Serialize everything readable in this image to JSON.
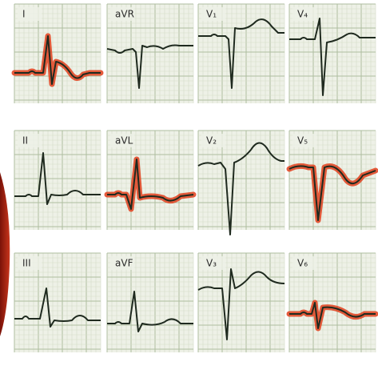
{
  "leads": [
    {
      "label": "I"
    },
    {
      "label": "aVR"
    },
    {
      "label": "V₁"
    },
    {
      "label": "V₄"
    },
    {
      "label": "II"
    },
    {
      "label": "aVL"
    },
    {
      "label": "V₂"
    },
    {
      "label": "V₅"
    },
    {
      "label": "III"
    },
    {
      "label": "aVF"
    },
    {
      "label": "V₃"
    },
    {
      "label": "V₆"
    }
  ]
}
